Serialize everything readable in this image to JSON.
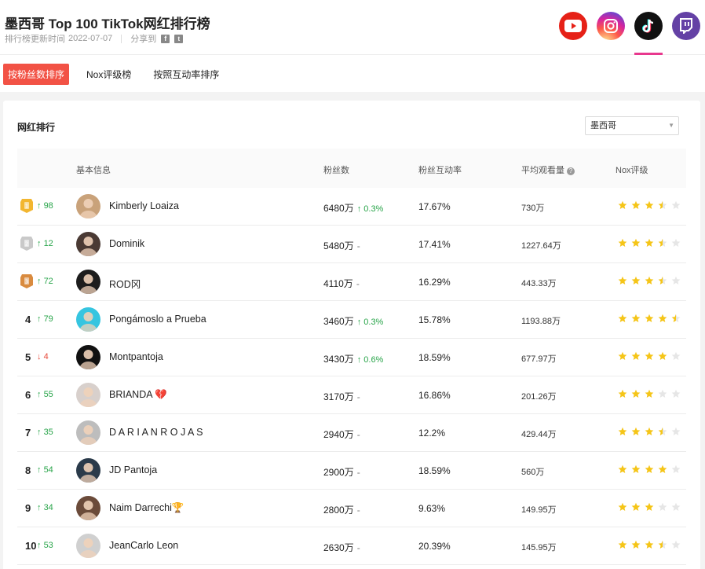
{
  "header": {
    "title": "墨西哥 Top 100 TikTok网红排行榜",
    "updated_label": "排行榜更新时间",
    "updated_date": "2022-07-07",
    "share_label": "分享到",
    "share_icons": [
      "facebook-icon",
      "twitter-icon"
    ],
    "platforms": [
      "youtube",
      "instagram",
      "tiktok",
      "twitch"
    ]
  },
  "tabs": [
    "按粉丝数排序",
    "Nox评级榜",
    "按照互动率排序"
  ],
  "card": {
    "title": "网红排行",
    "region": "墨西哥"
  },
  "table": {
    "headers": [
      "基本信息",
      "粉丝数",
      "粉丝互动率",
      "平均观看量",
      "Nox评级"
    ],
    "rows": [
      {
        "rank": "1",
        "change_dir": "up",
        "change": "98",
        "name": "Kimberly Loaiza",
        "fans": "6480万",
        "fans_delta": "0.3%",
        "engagement": "17.67%",
        "views": "730万",
        "rating": 3.5
      },
      {
        "rank": "2",
        "change_dir": "up",
        "change": "12",
        "name": "Dominik",
        "fans": "5480万",
        "fans_delta": "-",
        "engagement": "17.41%",
        "views": "1227.64万",
        "rating": 3.5
      },
      {
        "rank": "3",
        "change_dir": "up",
        "change": "72",
        "name": "ROD冈",
        "fans": "4110万",
        "fans_delta": "-",
        "engagement": "16.29%",
        "views": "443.33万",
        "rating": 3.5
      },
      {
        "rank": "4",
        "change_dir": "up",
        "change": "79",
        "name": "Pongámoslo a Prueba",
        "fans": "3460万",
        "fans_delta": "0.3%",
        "engagement": "15.78%",
        "views": "1193.88万",
        "rating": 4.5
      },
      {
        "rank": "5",
        "change_dir": "down",
        "change": "4",
        "name": "Montpantoja",
        "fans": "3430万",
        "fans_delta": "0.6%",
        "engagement": "18.59%",
        "views": "677.97万",
        "rating": 4
      },
      {
        "rank": "6",
        "change_dir": "up",
        "change": "55",
        "name": "BRIANDA 💔",
        "fans": "3170万",
        "fans_delta": "-",
        "engagement": "16.86%",
        "views": "201.26万",
        "rating": 3
      },
      {
        "rank": "7",
        "change_dir": "up",
        "change": "35",
        "name": "D A R I A N R O J A S",
        "fans": "2940万",
        "fans_delta": "-",
        "engagement": "12.2%",
        "views": "429.44万",
        "rating": 3.5
      },
      {
        "rank": "8",
        "change_dir": "up",
        "change": "54",
        "name": "JD Pantoja",
        "fans": "2900万",
        "fans_delta": "-",
        "engagement": "18.59%",
        "views": "560万",
        "rating": 4
      },
      {
        "rank": "9",
        "change_dir": "up",
        "change": "34",
        "name": "Naim Darrechi🏆",
        "fans": "2800万",
        "fans_delta": "-",
        "engagement": "9.63%",
        "views": "149.95万",
        "rating": 3
      },
      {
        "rank": "10",
        "change_dir": "up",
        "change": "53",
        "name": "JeanCarlo Leon",
        "fans": "2630万",
        "fans_delta": "-",
        "engagement": "20.39%",
        "views": "145.95万",
        "rating": 3.5
      }
    ]
  },
  "colors": {
    "accent": "#f25245",
    "up": "#2aa54b",
    "down": "#e64a3b",
    "star": "#f5c518",
    "star_empty": "#e6e6e6",
    "gold": "#f2b630",
    "silver": "#c9c9c9",
    "bronze": "#d98b3f"
  }
}
